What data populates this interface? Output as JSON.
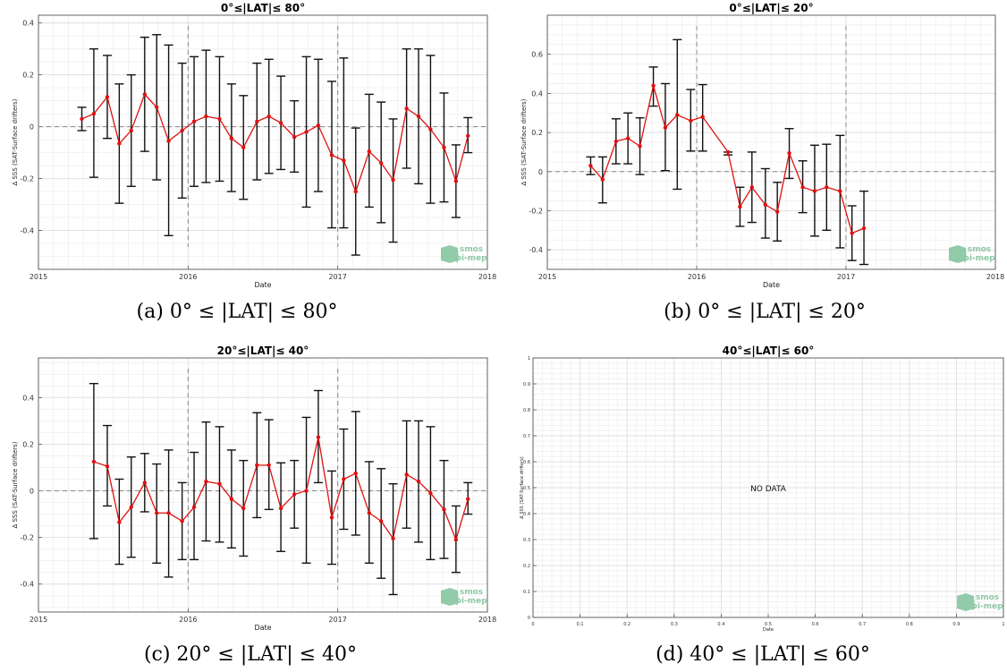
{
  "chart_data": [
    {
      "type": "line",
      "title": "0°≤|LAT|≤ 80°",
      "caption": "(a) 0° ≤ |LAT| ≤ 80°",
      "xlabel": "Date",
      "ylabel": "Δ SSS (SAT-Surface drifters)",
      "x_ticks": [
        "2015",
        "2016",
        "2017",
        "2018"
      ],
      "xlim": [
        2015,
        2018
      ],
      "ylim": [
        -0.55,
        0.43
      ],
      "y_ticks": [
        -0.4,
        -0.2,
        0,
        0.2,
        0.4
      ],
      "grid": true,
      "reference_lines": {
        "y": 0,
        "x": [
          2016,
          2017
        ]
      },
      "watermark": "smos pi-mep",
      "series": [
        {
          "x": [
            2015.29,
            2015.37,
            2015.46,
            2015.54,
            2015.62,
            2015.71,
            2015.79,
            2015.87,
            2015.96,
            2016.04,
            2016.12,
            2016.21,
            2016.29,
            2016.37,
            2016.46,
            2016.54,
            2016.62,
            2016.71,
            2016.79,
            2016.87,
            2016.96,
            2017.04,
            2017.12,
            2017.21,
            2017.29,
            2017.37,
            2017.46,
            2017.54,
            2017.62,
            2017.71,
            2017.79,
            2017.87
          ],
          "y": [
            0.03,
            0.05,
            0.115,
            -0.065,
            -0.015,
            0.125,
            0.075,
            -0.055,
            -0.015,
            0.02,
            0.04,
            0.03,
            -0.045,
            -0.08,
            0.02,
            0.04,
            0.015,
            -0.04,
            -0.02,
            0.005,
            -0.11,
            -0.13,
            -0.25,
            -0.095,
            -0.14,
            -0.205,
            0.07,
            0.04,
            -0.01,
            -0.08,
            -0.21,
            -0.035
          ],
          "err_low": [
            -0.015,
            -0.195,
            -0.045,
            -0.295,
            -0.23,
            -0.095,
            -0.205,
            -0.42,
            -0.275,
            -0.23,
            -0.215,
            -0.21,
            -0.25,
            -0.28,
            -0.205,
            -0.18,
            -0.165,
            -0.175,
            -0.31,
            -0.25,
            -0.39,
            -0.39,
            -0.495,
            -0.31,
            -0.37,
            -0.445,
            -0.16,
            -0.22,
            -0.295,
            -0.29,
            -0.35,
            -0.1
          ],
          "err_high": [
            0.075,
            0.3,
            0.275,
            0.165,
            0.2,
            0.345,
            0.355,
            0.315,
            0.245,
            0.27,
            0.295,
            0.27,
            0.165,
            0.12,
            0.245,
            0.26,
            0.195,
            0.1,
            0.27,
            0.26,
            0.175,
            0.265,
            -0.005,
            0.125,
            0.095,
            0.03,
            0.3,
            0.3,
            0.275,
            0.13,
            -0.07,
            0.035
          ]
        }
      ]
    },
    {
      "type": "line",
      "title": "0°≤|LAT|≤ 20°",
      "caption": "(b) 0° ≤ |LAT| ≤ 20°",
      "xlabel": "Date",
      "ylabel": "Δ SSS (SAT-Surface drifters)",
      "x_ticks": [
        "2015",
        "2016",
        "2017",
        "2018"
      ],
      "xlim": [
        2015,
        2018
      ],
      "ylim": [
        -0.5,
        0.8
      ],
      "y_ticks": [
        -0.4,
        -0.2,
        0,
        0.2,
        0.4,
        0.6
      ],
      "grid": true,
      "reference_lines": {
        "y": 0,
        "x": [
          2016,
          2017
        ]
      },
      "watermark": "smos pi-mep",
      "series": [
        {
          "x": [
            2015.29,
            2015.37,
            2015.46,
            2015.54,
            2015.62,
            2015.71,
            2015.79,
            2015.87,
            2015.96,
            2016.04,
            2016.21,
            2016.29,
            2016.37,
            2016.46,
            2016.54,
            2016.62,
            2016.71,
            2016.79,
            2016.87,
            2016.96,
            2017.04,
            2017.12
          ],
          "y": [
            0.03,
            -0.04,
            0.155,
            0.17,
            0.13,
            0.44,
            0.225,
            0.29,
            0.26,
            0.28,
            0.1,
            -0.18,
            -0.08,
            -0.17,
            -0.205,
            0.095,
            -0.08,
            -0.1,
            -0.08,
            -0.1,
            -0.315,
            -0.29
          ],
          "err_low": [
            -0.015,
            -0.16,
            0.04,
            0.04,
            -0.015,
            0.335,
            0.005,
            -0.09,
            0.105,
            0.105,
            0.085,
            -0.28,
            -0.26,
            -0.34,
            -0.355,
            -0.035,
            -0.21,
            -0.33,
            -0.3,
            -0.39,
            -0.455,
            -0.475
          ],
          "err_high": [
            0.075,
            0.075,
            0.27,
            0.3,
            0.275,
            0.535,
            0.45,
            0.675,
            0.42,
            0.445,
            0.1,
            -0.08,
            0.1,
            0.015,
            -0.055,
            0.22,
            0.055,
            0.135,
            0.14,
            0.185,
            -0.175,
            -0.1
          ]
        }
      ]
    },
    {
      "type": "line",
      "title": "20°≤|LAT|≤ 40°",
      "caption": "(c) 20° ≤ |LAT| ≤ 40°",
      "xlabel": "Date",
      "ylabel": "Δ SSS (SAT-Surface drifters)",
      "x_ticks": [
        "2015",
        "2016",
        "2017",
        "2018"
      ],
      "xlim": [
        2015,
        2018
      ],
      "ylim": [
        -0.52,
        0.57
      ],
      "y_ticks": [
        -0.4,
        -0.2,
        0,
        0.2,
        0.4
      ],
      "grid": true,
      "reference_lines": {
        "y": 0,
        "x": [
          2016,
          2017
        ]
      },
      "watermark": "smos pi-mep",
      "series": [
        {
          "x": [
            2015.37,
            2015.46,
            2015.54,
            2015.62,
            2015.71,
            2015.79,
            2015.87,
            2015.96,
            2016.04,
            2016.12,
            2016.21,
            2016.29,
            2016.37,
            2016.46,
            2016.54,
            2016.62,
            2016.71,
            2016.79,
            2016.87,
            2016.96,
            2017.04,
            2017.12,
            2017.21,
            2017.29,
            2017.37,
            2017.46,
            2017.54,
            2017.62,
            2017.71,
            2017.79,
            2017.87
          ],
          "y": [
            0.125,
            0.105,
            -0.135,
            -0.07,
            0.035,
            -0.095,
            -0.095,
            -0.13,
            -0.07,
            0.04,
            0.03,
            -0.035,
            -0.075,
            0.11,
            0.11,
            -0.075,
            -0.015,
            0.0,
            0.23,
            -0.115,
            0.05,
            0.075,
            -0.095,
            -0.13,
            -0.205,
            0.07,
            0.04,
            -0.01,
            -0.08,
            -0.21,
            -0.035
          ],
          "err_low": [
            -0.205,
            -0.065,
            -0.315,
            -0.285,
            -0.09,
            -0.31,
            -0.37,
            -0.295,
            -0.295,
            -0.215,
            -0.22,
            -0.245,
            -0.28,
            -0.115,
            -0.08,
            -0.26,
            -0.16,
            -0.31,
            0.035,
            -0.315,
            -0.165,
            -0.19,
            -0.31,
            -0.375,
            -0.445,
            -0.16,
            -0.22,
            -0.295,
            -0.29,
            -0.35,
            -0.1
          ],
          "err_high": [
            0.46,
            0.28,
            0.05,
            0.145,
            0.16,
            0.115,
            0.175,
            0.035,
            0.165,
            0.295,
            0.275,
            0.175,
            0.13,
            0.335,
            0.305,
            0.12,
            0.13,
            0.315,
            0.43,
            0.085,
            0.265,
            0.34,
            0.125,
            0.095,
            0.03,
            0.3,
            0.3,
            0.275,
            0.13,
            -0.065,
            0.035
          ]
        }
      ]
    },
    {
      "type": "line",
      "title": "40°≤|LAT|≤ 60°",
      "caption": "(d) 40° ≤ |LAT| ≤ 60°",
      "xlabel": "Date",
      "ylabel": "Δ SSS (SAT-Surface drifters)",
      "annotation": "NO DATA",
      "x_ticks": [
        "0",
        "0.1",
        "0.2",
        "0.3",
        "0.4",
        "0.5",
        "0.6",
        "0.7",
        "0.8",
        "0.9",
        "1"
      ],
      "y_ticks": [
        "0",
        "0.1",
        "0.2",
        "0.3",
        "0.4",
        "0.5",
        "0.6",
        "0.7",
        "0.8",
        "0.9",
        "1"
      ],
      "xlim": [
        0,
        1
      ],
      "ylim": [
        0,
        1
      ],
      "grid": true,
      "watermark": "smos pi-mep",
      "series": []
    }
  ]
}
